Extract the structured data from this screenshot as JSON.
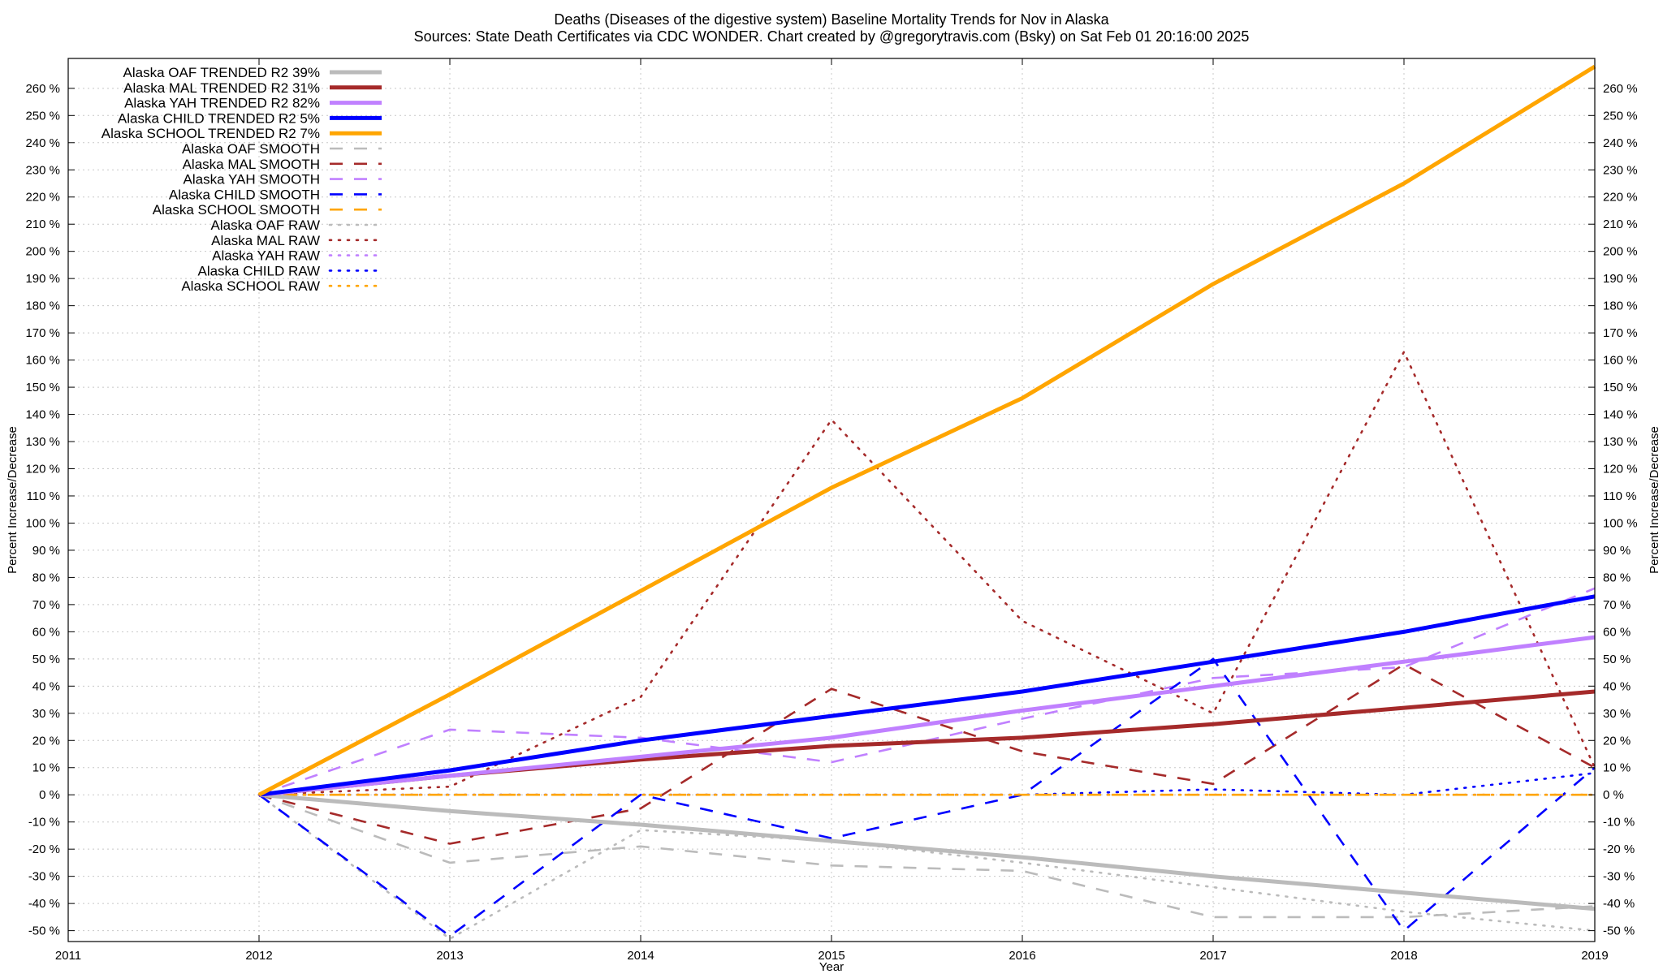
{
  "header": {
    "title": "Deaths (Diseases of the digestive system)  Baseline Mortality Trends for Nov in Alaska",
    "subtitle": "Sources: State Death Certificates via CDC WONDER.              Chart created by @gregorytravis.com (Bsky) on Sat Feb 01 20:16:00 2025"
  },
  "chart_data": {
    "type": "line",
    "title": "Deaths (Diseases of the digestive system)  Baseline Mortality Trends for Nov in Alaska",
    "xlabel": "Year",
    "ylabel": "Percent Increase/Decrease",
    "y2label": "Percent Increase/Decrease",
    "xlim": [
      2011,
      2019
    ],
    "ylim": [
      -50,
      260
    ],
    "x_ticks": [
      "2011",
      "2012",
      "2013",
      "2014",
      "2015",
      "2016",
      "2017",
      "2018",
      "2019"
    ],
    "y_ticks": [
      "-50 %",
      "-40 %",
      "-30 %",
      "-20 %",
      "-10 %",
      "0 %",
      "10 %",
      "20 %",
      "30 %",
      "40 %",
      "50 %",
      "60 %",
      "70 %",
      "80 %",
      "90 %",
      "100 %",
      "110 %",
      "120 %",
      "130 %",
      "140 %",
      "150 %",
      "160 %",
      "170 %",
      "180 %",
      "190 %",
      "200 %",
      "210 %",
      "220 %",
      "230 %",
      "240 %",
      "250 %",
      "260 %"
    ],
    "grid": true,
    "legend_position": "top-left",
    "x": [
      2012,
      2013,
      2014,
      2015,
      2016,
      2017,
      2018,
      2019
    ],
    "series": [
      {
        "name": "Alaska OAF TRENDED R2  39%",
        "style": "solid",
        "color": "#bbbbbb",
        "values": [
          0,
          -6,
          -11,
          -17,
          -23,
          -30,
          -36,
          -42
        ]
      },
      {
        "name": "Alaska MAL TRENDED R2  31%",
        "style": "solid",
        "color": "#a52a2a",
        "values": [
          0,
          7,
          13,
          18,
          21,
          26,
          32,
          38
        ]
      },
      {
        "name": "Alaska YAH TRENDED R2  82%",
        "style": "solid",
        "color": "#c080ff",
        "values": [
          0,
          7,
          14,
          21,
          31,
          40,
          49,
          58
        ]
      },
      {
        "name": "Alaska CHILD TRENDED R2  5%",
        "style": "solid",
        "color": "#0000ff",
        "values": [
          0,
          9,
          20,
          29,
          38,
          49,
          60,
          73
        ]
      },
      {
        "name": "Alaska SCHOOL TRENDED R2  7%",
        "style": "solid",
        "color": "#ffa500",
        "values": [
          0,
          37,
          75,
          113,
          146,
          188,
          225,
          268
        ]
      },
      {
        "name": "Alaska OAF SMOOTH",
        "style": "dashed",
        "color": "#bbbbbb",
        "values": [
          0,
          -25,
          -19,
          -26,
          -28,
          -45,
          -45,
          -41
        ]
      },
      {
        "name": "Alaska MAL SMOOTH",
        "style": "dashed",
        "color": "#a52a2a",
        "values": [
          0,
          -18,
          -5,
          39,
          16,
          4,
          48,
          10
        ]
      },
      {
        "name": "Alaska YAH SMOOTH",
        "style": "dashed",
        "color": "#c080ff",
        "values": [
          0,
          24,
          21,
          12,
          28,
          43,
          47,
          76
        ]
      },
      {
        "name": "Alaska CHILD SMOOTH",
        "style": "dashed",
        "color": "#0000ff",
        "values": [
          0,
          -52,
          0,
          -16,
          0,
          50,
          -50,
          10
        ]
      },
      {
        "name": "Alaska SCHOOL SMOOTH",
        "style": "dashed",
        "color": "#ffa500",
        "values": [
          0,
          0,
          0,
          0,
          0,
          0,
          0,
          0
        ]
      },
      {
        "name": "Alaska OAF RAW",
        "style": "dotted",
        "color": "#bbbbbb",
        "values": [
          0,
          -53,
          -13,
          -17,
          -25,
          -34,
          -43,
          -50
        ]
      },
      {
        "name": "Alaska MAL RAW",
        "style": "dotted",
        "color": "#a52a2a",
        "values": [
          0,
          3,
          36,
          138,
          64,
          30,
          163,
          10
        ]
      },
      {
        "name": "Alaska YAH RAW",
        "style": "dotted",
        "color": "#c080ff",
        "values": [
          0,
          0,
          0,
          0,
          0,
          0,
          0,
          0
        ]
      },
      {
        "name": "Alaska CHILD RAW",
        "style": "dotted",
        "color": "#0000ff",
        "values": [
          0,
          0,
          0,
          0,
          0,
          2,
          0,
          8
        ]
      },
      {
        "name": "Alaska SCHOOL RAW",
        "style": "dotted",
        "color": "#ffa500",
        "values": [
          0,
          0,
          0,
          0,
          0,
          0,
          0,
          0
        ]
      }
    ]
  }
}
